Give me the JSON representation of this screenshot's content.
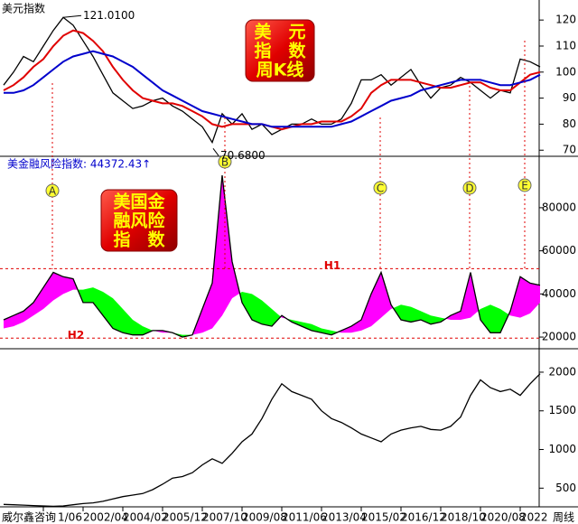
{
  "chart_data": [
    {
      "type": "line",
      "title": "美元指数",
      "ylim": [
        68,
        127
      ],
      "yticks": [
        70,
        80,
        90,
        100,
        110,
        120
      ],
      "series": [
        {
          "color": "#000000",
          "values": [
            95,
            100,
            106,
            104,
            110,
            116,
            121,
            118,
            112,
            106,
            99,
            92,
            89,
            86,
            87,
            89,
            90,
            87,
            85,
            82,
            79,
            73,
            84,
            80,
            84,
            78,
            80,
            76,
            78,
            80,
            80,
            82,
            80,
            80,
            82,
            88,
            97,
            97,
            99,
            95,
            98,
            101,
            95,
            90,
            94,
            95,
            98,
            96,
            93,
            90,
            93,
            92,
            105,
            104,
            102
          ]
        },
        {
          "color": "#e00000",
          "values": [
            93,
            95,
            98,
            102,
            105,
            110,
            114,
            116,
            115,
            112,
            108,
            102,
            97,
            93,
            90,
            89,
            88,
            88,
            87,
            85,
            83,
            80,
            79,
            80,
            80,
            80,
            80,
            79,
            78,
            79,
            80,
            80,
            81,
            81,
            81,
            83,
            86,
            92,
            95,
            97,
            97,
            97,
            96,
            95,
            94,
            94,
            95,
            96,
            96,
            94,
            93,
            93,
            96,
            99,
            100
          ]
        },
        {
          "color": "#0000cc",
          "values": [
            92,
            92,
            93,
            95,
            98,
            101,
            104,
            106,
            107,
            108,
            107,
            106,
            104,
            102,
            99,
            96,
            93,
            91,
            89,
            87,
            85,
            84,
            83,
            82,
            81,
            80,
            80,
            79,
            79,
            79,
            79,
            79,
            79,
            79,
            80,
            81,
            83,
            85,
            87,
            89,
            90,
            91,
            93,
            94,
            95,
            96,
            97,
            97,
            97,
            96,
            95,
            95,
            96,
            97,
            99
          ]
        }
      ],
      "annotations": [
        {
          "value": 121.01,
          "label": "121.0100"
        },
        {
          "value": 70.68,
          "label": "70.6800"
        }
      ],
      "label_box": [
        "美　元",
        "指　数",
        "周K线"
      ]
    },
    {
      "type": "area",
      "title": "美金融风险指数: 44372.43↑",
      "ylim": [
        15000,
        103000
      ],
      "yticks": [
        20000,
        40000,
        60000,
        80000
      ],
      "series": [
        {
          "color": "#000000",
          "values": [
            28000,
            30000,
            32000,
            36000,
            43000,
            50000,
            48000,
            47000,
            36000,
            36000,
            30000,
            24000,
            22000,
            21000,
            21000,
            23000,
            23000,
            22000,
            20000,
            21000,
            33000,
            45000,
            95000,
            55000,
            36000,
            28000,
            26000,
            25000,
            30000,
            27000,
            25000,
            23000,
            22000,
            21000,
            23000,
            25000,
            28000,
            40000,
            50000,
            35000,
            28000,
            27000,
            28000,
            26000,
            27000,
            30000,
            32000,
            50000,
            28000,
            22000,
            22000,
            32000,
            48000,
            45000,
            44000
          ]
        },
        {
          "values": [
            24000,
            25000,
            27000,
            30000,
            33000,
            37000,
            40000,
            42000,
            42000,
            43000,
            41000,
            38000,
            33000,
            28000,
            25000,
            23000,
            22000,
            22000,
            21000,
            21000,
            22000,
            24000,
            30000,
            38000,
            41000,
            40000,
            37000,
            33000,
            29000,
            28000,
            27000,
            26000,
            24000,
            23000,
            22000,
            22000,
            23000,
            25000,
            29000,
            33000,
            35000,
            34000,
            32000,
            30000,
            29000,
            28000,
            28000,
            29000,
            33000,
            35000,
            33000,
            30000,
            29000,
            31000,
            36000
          ]
        }
      ],
      "fill_above": "#ff00ff",
      "fill_below": "#00ff00",
      "levels": [
        {
          "value": 51700,
          "label": "H1"
        },
        {
          "value": 19500,
          "label": "H2"
        }
      ],
      "level_color": "#e00000",
      "events": [
        "A",
        "B",
        "C",
        "D",
        "E"
      ],
      "label_box": [
        "美国金",
        "融风险",
        "指　数"
      ]
    },
    {
      "type": "line",
      "ylim": [
        270,
        2280
      ],
      "yticks": [
        500,
        1000,
        1500,
        2000
      ],
      "series": [
        {
          "color": "#000000",
          "values": [
            290,
            285,
            280,
            275,
            270,
            265,
            270,
            285,
            300,
            310,
            330,
            360,
            390,
            410,
            430,
            480,
            550,
            630,
            650,
            700,
            800,
            880,
            820,
            950,
            1100,
            1200,
            1400,
            1650,
            1850,
            1750,
            1700,
            1650,
            1500,
            1400,
            1350,
            1280,
            1200,
            1150,
            1100,
            1200,
            1250,
            1280,
            1300,
            1260,
            1250,
            1300,
            1420,
            1700,
            1900,
            1800,
            1750,
            1780,
            1700,
            1850,
            1980
          ]
        }
      ],
      "categories": [
        null,
        null,
        null,
        null,
        "1/06",
        null,
        null,
        null,
        "2002/04",
        null,
        null,
        null,
        "2004/02",
        null,
        null,
        null,
        "2005/12",
        null,
        null,
        null,
        "2007/10",
        null,
        null,
        null,
        "2009/08",
        null,
        null,
        null,
        "2011/06",
        null,
        null,
        null,
        "2013/04",
        null,
        null,
        null,
        "2015/02",
        null,
        null,
        null,
        "2016/12",
        null,
        null,
        null,
        "2018/10",
        null,
        null,
        null,
        "2020/08",
        null,
        null,
        null,
        "2022/",
        null,
        null
      ],
      "footer": "威尔鑫咨询",
      "x_unit": "周线"
    }
  ]
}
